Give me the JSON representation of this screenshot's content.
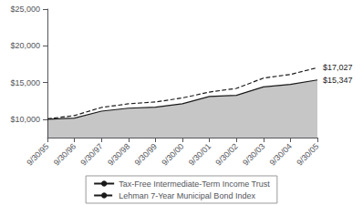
{
  "chart_data": {
    "type": "line",
    "categories": [
      "9/30/95",
      "9/30/96",
      "9/30/97",
      "9/30/98",
      "9/30/99",
      "9/30/00",
      "9/30/01",
      "9/30/02",
      "9/30/03",
      "9/30/04",
      "9/30/05"
    ],
    "series": [
      {
        "name": "Tax-Free Intermediate-Term Income Trust",
        "type": "area",
        "color": "#1a1a1a",
        "line_style": "solid",
        "values": [
          10000,
          10150,
          11100,
          11500,
          11650,
          12100,
          13100,
          13250,
          14400,
          14750,
          15347
        ]
      },
      {
        "name": "Lehman 7-Year Municipal Bond Index",
        "type": "line",
        "color": "#1a1a1a",
        "line_style": "dashed",
        "values": [
          10050,
          10500,
          11600,
          12100,
          12350,
          12900,
          13700,
          14200,
          15600,
          16100,
          17027
        ]
      }
    ],
    "ylim": [
      7500,
      25000
    ],
    "yticks": [
      {
        "value": 10000,
        "label": "$10,000"
      },
      {
        "value": 15000,
        "label": "$15,000"
      },
      {
        "value": 20000,
        "label": "$20,000"
      },
      {
        "value": 25000,
        "label": "$25,000"
      }
    ],
    "annotations": [
      {
        "text": "$17,027",
        "x": "9/30/05",
        "y": 17027
      },
      {
        "text": "$15,347",
        "x": "9/30/05",
        "y": 15347
      }
    ],
    "grid": false,
    "legend": "bottom"
  }
}
